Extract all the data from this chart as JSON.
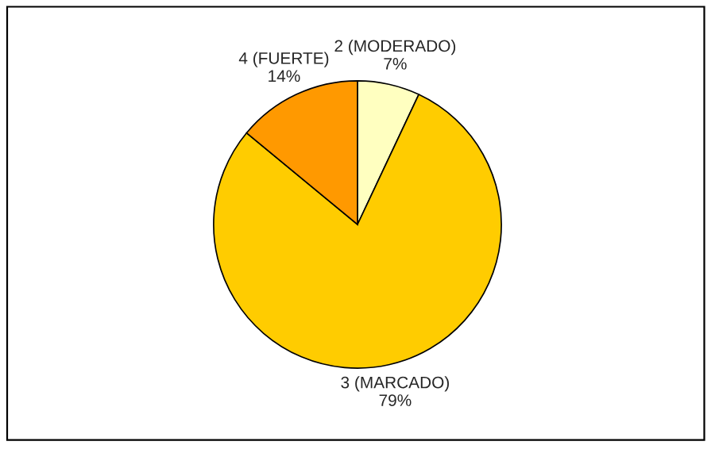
{
  "chart_data": {
    "type": "pie",
    "categories": [
      "2 (MODERADO)",
      "3 (MARCADO)",
      "4 (FUERTE)"
    ],
    "values": [
      7,
      79,
      14
    ],
    "value_labels": [
      "7%",
      "79%",
      "14%"
    ],
    "colors": [
      "#ffffc0",
      "#ffcc00",
      "#ff9900"
    ],
    "legend": false
  }
}
